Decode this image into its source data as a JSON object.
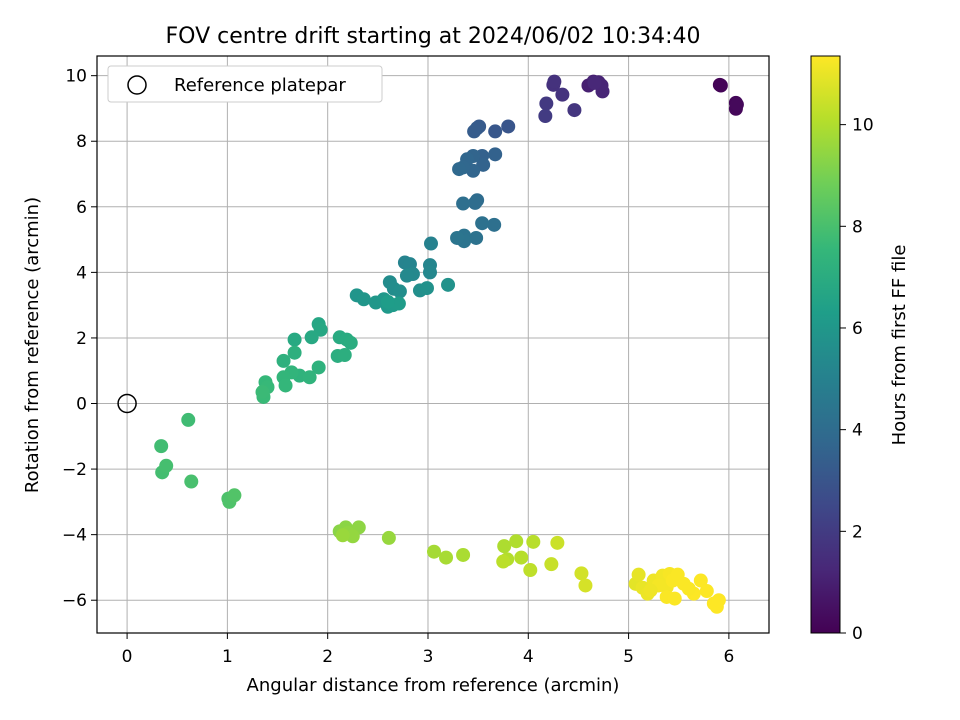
{
  "chart_data": {
    "type": "scatter",
    "title": "FOV centre drift starting at 2024/06/02 10:34:40",
    "xlabel": "Angular distance from reference (arcmin)",
    "ylabel": "Rotation from reference (arcmin)",
    "xlim": [
      -0.3,
      6.4
    ],
    "ylim": [
      -7.0,
      10.6
    ],
    "xticks": [
      "0",
      "1",
      "2",
      "3",
      "4",
      "5",
      "6"
    ],
    "yticks": [
      "−6",
      "−4",
      "−2",
      "0",
      "2",
      "4",
      "6",
      "8",
      "10"
    ],
    "grid": true,
    "legend": {
      "position": "top-left",
      "entries": [
        {
          "label": "Reference platepar",
          "marker": "open-circle"
        }
      ]
    },
    "reference_point": {
      "x": 0,
      "y": 0
    },
    "colorbar": {
      "label": "Hours from first FF file",
      "min": 0,
      "max": 11.35,
      "ticks": [
        "0",
        "2",
        "4",
        "6",
        "8",
        "10"
      ],
      "colormap": "viridis",
      "colors": [
        "#440154",
        "#482878",
        "#3e4989",
        "#31688e",
        "#26828e",
        "#1f9e89",
        "#35b779",
        "#6ece58",
        "#b5de2b",
        "#fde725"
      ]
    },
    "series": [
      {
        "values": [
          [
            5.91,
            9.72,
            0.05
          ],
          [
            5.92,
            9.7,
            0.1
          ],
          [
            6.07,
            9.17,
            0.15
          ],
          [
            6.07,
            8.99,
            0.2
          ],
          [
            6.08,
            9.12,
            0.25
          ],
          [
            4.6,
            9.7,
            1.0
          ],
          [
            4.65,
            9.82,
            1.05
          ],
          [
            4.7,
            9.8,
            1.1
          ],
          [
            4.73,
            9.7,
            1.15
          ],
          [
            4.74,
            9.52,
            1.2
          ],
          [
            4.66,
            9.78,
            1.25
          ],
          [
            4.25,
            9.72,
            1.6
          ],
          [
            4.26,
            9.82,
            1.65
          ],
          [
            4.34,
            9.42,
            1.7
          ],
          [
            4.46,
            8.95,
            1.8
          ],
          [
            4.18,
            9.15,
            1.9
          ],
          [
            4.17,
            8.77,
            2.0
          ],
          [
            3.8,
            8.45,
            3.0
          ],
          [
            3.67,
            8.3,
            3.1
          ],
          [
            3.51,
            8.45,
            3.2
          ],
          [
            3.49,
            8.4,
            3.25
          ],
          [
            3.46,
            8.3,
            3.3
          ],
          [
            3.54,
            7.55,
            3.5
          ],
          [
            3.67,
            7.6,
            3.55
          ],
          [
            3.55,
            7.28,
            3.6
          ],
          [
            3.45,
            7.55,
            3.65
          ],
          [
            3.45,
            7.1,
            3.7
          ],
          [
            3.39,
            7.45,
            3.75
          ],
          [
            3.35,
            7.2,
            3.8
          ],
          [
            3.31,
            7.15,
            3.85
          ],
          [
            3.49,
            6.2,
            4.0
          ],
          [
            3.47,
            6.12,
            4.05
          ],
          [
            3.35,
            6.1,
            4.1
          ],
          [
            3.66,
            5.45,
            4.15
          ],
          [
            3.54,
            5.5,
            4.2
          ],
          [
            3.48,
            5.05,
            4.25
          ],
          [
            3.36,
            5.12,
            4.3
          ],
          [
            3.36,
            4.95,
            4.35
          ],
          [
            3.29,
            5.05,
            4.4
          ],
          [
            3.03,
            4.88,
            5.0
          ],
          [
            2.77,
            4.3,
            5.1
          ],
          [
            2.82,
            4.25,
            5.15
          ],
          [
            3.02,
            4.22,
            5.2
          ],
          [
            3.02,
            4.0,
            5.25
          ],
          [
            2.85,
            3.95,
            5.3
          ],
          [
            2.79,
            3.9,
            5.35
          ],
          [
            2.62,
            3.7,
            5.5
          ],
          [
            2.66,
            3.5,
            5.55
          ],
          [
            2.72,
            3.42,
            5.6
          ],
          [
            2.92,
            3.45,
            5.65
          ],
          [
            2.99,
            3.52,
            5.7
          ],
          [
            3.2,
            3.62,
            5.75
          ],
          [
            2.29,
            3.3,
            5.9
          ],
          [
            2.36,
            3.18,
            5.95
          ],
          [
            2.48,
            3.08,
            6.0
          ],
          [
            2.56,
            3.18,
            6.05
          ],
          [
            2.6,
            2.95,
            6.1
          ],
          [
            2.65,
            3.0,
            6.15
          ],
          [
            2.71,
            3.05,
            6.2
          ],
          [
            2.6,
            3.1,
            6.25
          ],
          [
            1.91,
            2.42,
            6.7
          ],
          [
            1.93,
            2.25,
            6.75
          ],
          [
            1.84,
            2.02,
            6.8
          ],
          [
            1.67,
            1.95,
            6.85
          ],
          [
            2.12,
            2.02,
            6.9
          ],
          [
            2.19,
            1.95,
            6.95
          ],
          [
            2.23,
            1.85,
            7.0
          ],
          [
            2.1,
            1.45,
            7.05
          ],
          [
            2.17,
            1.48,
            7.1
          ],
          [
            1.67,
            1.55,
            7.15
          ],
          [
            1.56,
            1.3,
            7.2
          ],
          [
            1.91,
            1.1,
            7.25
          ],
          [
            1.72,
            0.85,
            7.3
          ],
          [
            1.82,
            0.8,
            7.35
          ],
          [
            1.64,
            0.95,
            7.4
          ],
          [
            1.56,
            0.8,
            7.45
          ],
          [
            1.58,
            0.55,
            7.5
          ],
          [
            1.38,
            0.65,
            7.55
          ],
          [
            1.4,
            0.5,
            7.6
          ],
          [
            1.36,
            0.2,
            7.65
          ],
          [
            1.35,
            0.35,
            7.7
          ],
          [
            0.61,
            -0.5,
            7.8
          ],
          [
            0.34,
            -1.3,
            7.85
          ],
          [
            0.35,
            -2.1,
            7.9
          ],
          [
            0.39,
            -1.9,
            7.95
          ],
          [
            0.64,
            -2.38,
            8.0
          ],
          [
            1.01,
            -2.9,
            8.1
          ],
          [
            1.02,
            -3.0,
            8.15
          ],
          [
            1.07,
            -2.8,
            8.2
          ],
          [
            2.12,
            -3.9,
            9.3
          ],
          [
            2.18,
            -3.78,
            9.35
          ],
          [
            2.31,
            -3.78,
            9.4
          ],
          [
            2.2,
            -3.95,
            9.45
          ],
          [
            2.25,
            -4.05,
            9.5
          ],
          [
            2.61,
            -4.1,
            9.55
          ],
          [
            2.15,
            -4.02,
            9.6
          ],
          [
            3.06,
            -4.52,
            9.8
          ],
          [
            3.18,
            -4.7,
            9.85
          ],
          [
            3.35,
            -4.62,
            9.9
          ],
          [
            3.76,
            -4.35,
            9.95
          ],
          [
            3.88,
            -4.2,
            10.0
          ],
          [
            3.79,
            -4.75,
            10.05
          ],
          [
            3.93,
            -4.7,
            10.1
          ],
          [
            4.05,
            -4.22,
            10.15
          ],
          [
            3.75,
            -4.82,
            10.2
          ],
          [
            4.02,
            -5.08,
            10.25
          ],
          [
            4.23,
            -4.9,
            10.4
          ],
          [
            4.29,
            -4.25,
            10.45
          ],
          [
            4.53,
            -5.18,
            10.6
          ],
          [
            4.57,
            -5.55,
            10.65
          ],
          [
            5.07,
            -5.5,
            10.9
          ],
          [
            5.1,
            -5.22,
            10.95
          ],
          [
            5.14,
            -5.62,
            11.0
          ],
          [
            5.19,
            -5.8,
            11.05
          ],
          [
            5.25,
            -5.4,
            11.1
          ],
          [
            5.34,
            -5.25,
            11.15
          ],
          [
            5.38,
            -5.6,
            11.2
          ],
          [
            5.41,
            -5.2,
            11.25
          ],
          [
            5.44,
            -5.4,
            11.3
          ],
          [
            5.49,
            -5.22,
            11.3
          ],
          [
            5.38,
            -5.9,
            11.3
          ],
          [
            5.46,
            -5.95,
            11.32
          ],
          [
            5.65,
            -5.8,
            11.33
          ],
          [
            5.72,
            -5.4,
            11.34
          ],
          [
            5.78,
            -5.72,
            11.34
          ],
          [
            5.85,
            -6.1,
            11.35
          ],
          [
            5.88,
            -6.2,
            11.35
          ],
          [
            5.9,
            -6.0,
            11.35
          ],
          [
            5.55,
            -5.5,
            11.3
          ],
          [
            5.3,
            -5.55,
            11.2
          ],
          [
            5.22,
            -5.7,
            11.1
          ],
          [
            5.6,
            -5.65,
            11.3
          ]
        ]
      }
    ]
  }
}
